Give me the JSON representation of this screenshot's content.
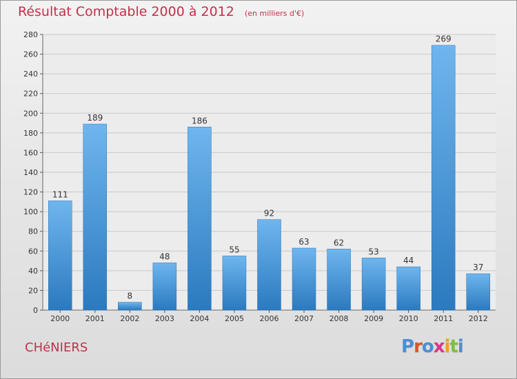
{
  "title": "Résultat Comptable 2000 à 2012",
  "unit": "(en milliers d'€)",
  "commune": "CHéNIERS",
  "logo": {
    "text": "Proxiti",
    "colors": [
      "#4a8fd6",
      "#e0522a",
      "#4a8fd6",
      "#d43a8c",
      "#f0a020",
      "#7cc040",
      "#4a8fd6"
    ]
  },
  "colors": {
    "title": "#c0314a",
    "bar": "#4a9de0",
    "bar_light": "#6fb6ee",
    "bar_dark": "#2b79bf",
    "grid": "#c8c8c8"
  },
  "chart_data": {
    "type": "bar",
    "title": "Résultat Comptable 2000 à 2012",
    "xlabel": "",
    "ylabel": "",
    "categories": [
      "2000",
      "2001",
      "2002",
      "2003",
      "2004",
      "2005",
      "2006",
      "2007",
      "2008",
      "2009",
      "2010",
      "2011",
      "2012"
    ],
    "values": [
      111,
      189,
      8,
      48,
      186,
      55,
      92,
      63,
      62,
      53,
      44,
      269,
      37
    ],
    "ylim": [
      0,
      280
    ],
    "yticks": [
      0,
      20,
      40,
      60,
      80,
      100,
      120,
      140,
      160,
      180,
      200,
      220,
      240,
      260,
      280
    ],
    "grid": true
  }
}
